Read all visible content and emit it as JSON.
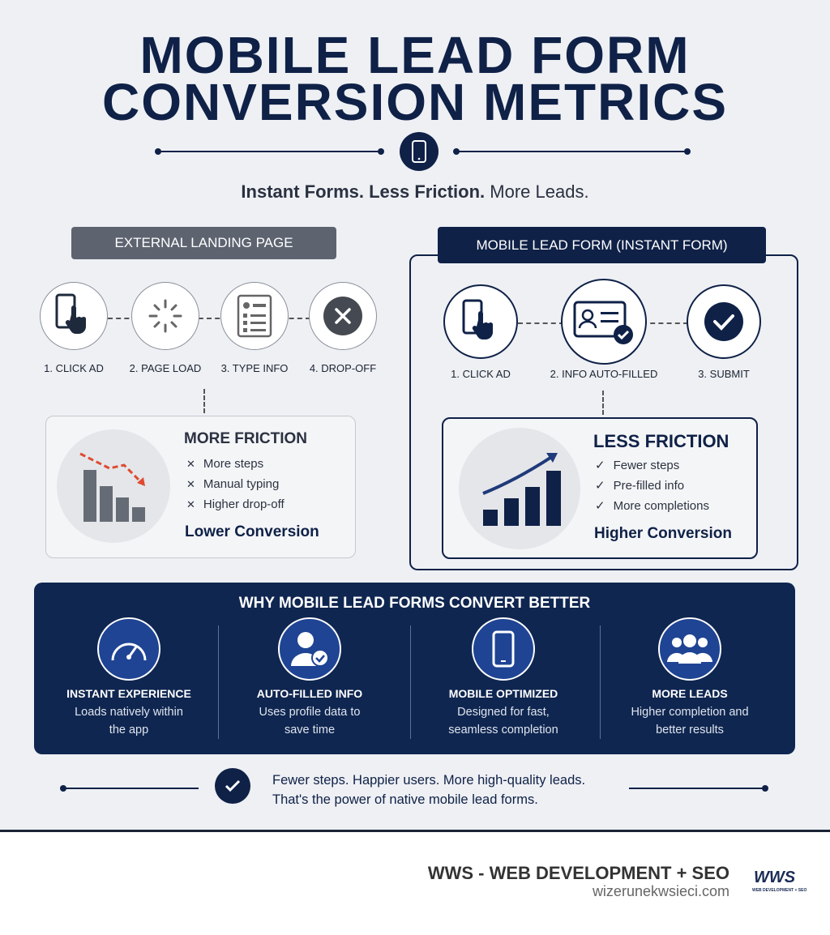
{
  "header": {
    "title_line1": "MOBILE LEAD FORM",
    "title_line2": "CONVERSION METRICS",
    "tagline_bold": "Instant Forms. Less Friction.",
    "tagline": "More Leads."
  },
  "left": {
    "label": "EXTERNAL LANDING PAGE",
    "steps": [
      "1. CLICK AD",
      "2. PAGE LOAD",
      "3. TYPE INFO",
      "4. DROP-OFF"
    ],
    "result": {
      "title": "MORE FRICTION",
      "items": [
        "More steps",
        "Manual typing",
        "Higher drop-off"
      ],
      "outcome": "Lower Conversion"
    }
  },
  "right": {
    "label": "MOBILE LEAD FORM (INSTANT FORM)",
    "steps": [
      "1. CLICK AD",
      "2. INFO AUTO-FILLED",
      "3. SUBMIT"
    ],
    "result": {
      "title": "LESS FRICTION",
      "items": [
        "Fewer steps",
        "Pre-filled info",
        "More completions"
      ],
      "outcome": "Higher Conversion"
    }
  },
  "benefits": {
    "title": "WHY MOBILE LEAD FORMS CONVERT BETTER",
    "items": [
      {
        "title": "INSTANT EXPERIENCE",
        "text": "Loads natively within the app"
      },
      {
        "title": "AUTO-FILLED INFO",
        "text": "Uses profile data to save time"
      },
      {
        "title": "MOBILE OPTIMIZED",
        "text": "Designed for fast, seamless completion"
      },
      {
        "title": "MORE LEADS",
        "text": "Higher completion and better results"
      }
    ]
  },
  "note": {
    "line1": "Fewer steps. Happier users. More high-quality leads.",
    "line2": "That's the power of native mobile lead forms."
  },
  "brand": {
    "name": "WWS - WEB DEVELOPMENT + SEO",
    "url": "wizerunekwsieci.com",
    "logo": "WWS",
    "logo_sub": "WEB DEVELOPMENT + SEO"
  }
}
